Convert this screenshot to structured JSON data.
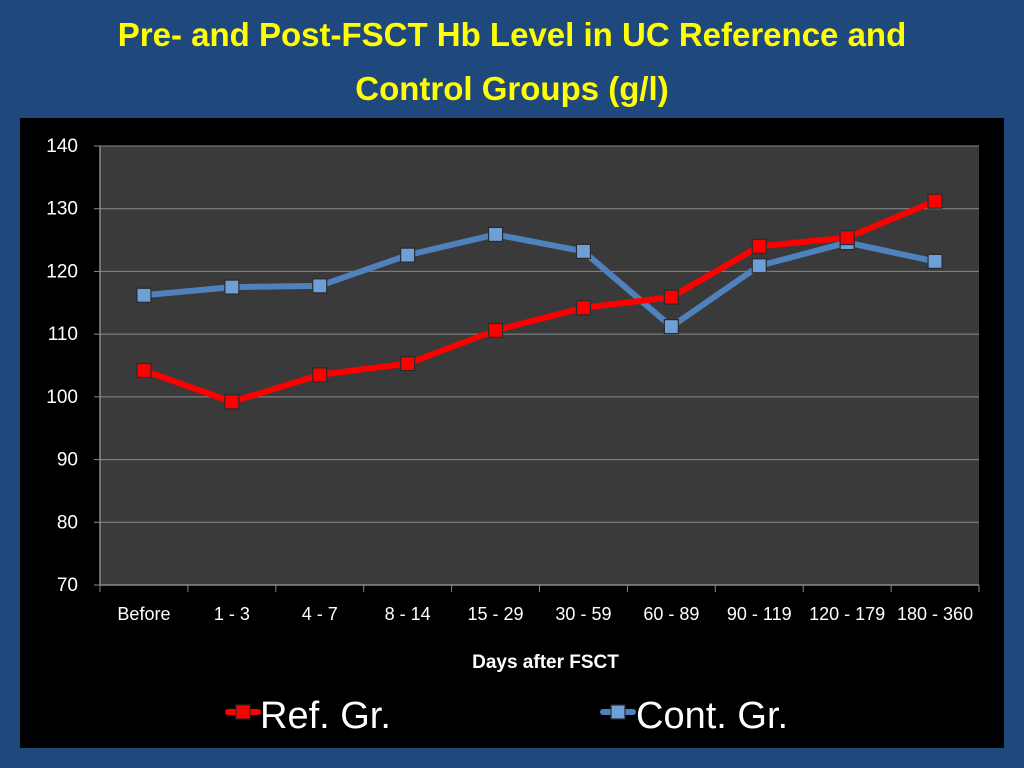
{
  "title_line1": "Pre- and Post-FSCT Hb Level in UC Reference and",
  "title_line2": "Control Groups (g/l)",
  "chart_data": {
    "type": "line",
    "title": "Pre- and Post-FSCT Hb Level in UC Reference and Control Groups (g/l)",
    "xlabel": "Days after FSCT",
    "ylabel": "",
    "categories": [
      "Before",
      "1 - 3",
      "4 - 7",
      "8 - 14",
      "15 - 29",
      "30 - 59",
      "60 - 89",
      "90 - 119",
      "120 - 179",
      "180 - 360"
    ],
    "ylim": [
      70,
      140
    ],
    "yticks": [
      "70",
      "80",
      "90",
      "100",
      "110",
      "120",
      "130",
      "140"
    ],
    "grid": true,
    "legend_position": "bottom",
    "series": [
      {
        "name": "Ref. Gr.",
        "color": "#ff0000",
        "marker_color": "#ff0000",
        "values": [
          104.2,
          99.2,
          103.5,
          105.3,
          110.6,
          114.2,
          115.9,
          124.0,
          125.4,
          131.2
        ]
      },
      {
        "name": "Cont. Gr.",
        "color": "#4f81bd",
        "marker_color": "#6f9fd8",
        "values": [
          116.2,
          117.5,
          117.7,
          122.6,
          125.9,
          123.2,
          111.2,
          120.9,
          124.6,
          121.6
        ]
      }
    ]
  }
}
